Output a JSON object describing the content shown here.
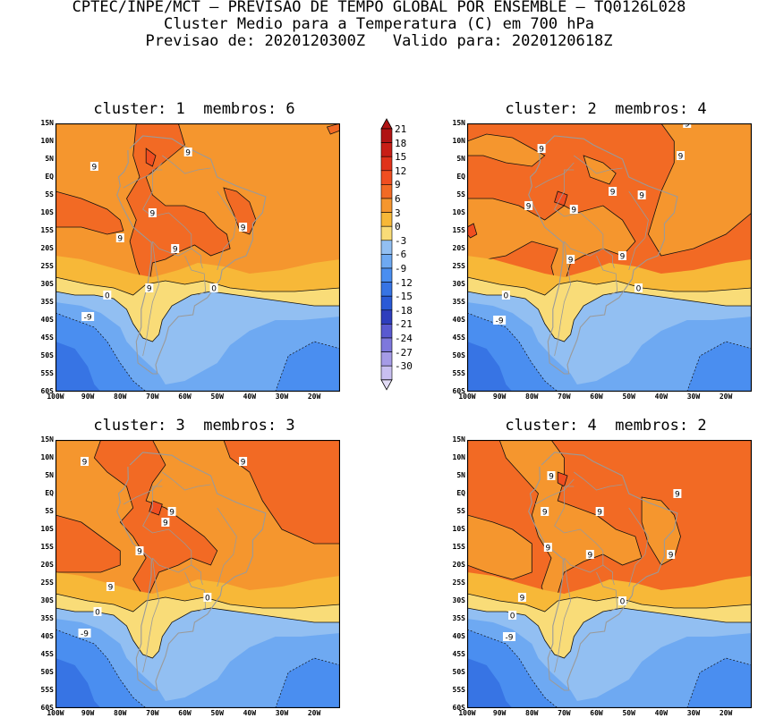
{
  "header": {
    "line1": "CPTEC/INPE/MCT — PREVISAO DE TEMPO GLOBAL POR ENSEMBLE — TQ0126L028",
    "line2": "Cluster Medio para a Temperatura (C) em 700 hPa",
    "line3": "Previsao de: 2020120300Z   Valido para: 2020120618Z"
  },
  "map": {
    "lat_labels": [
      "15N",
      "10N",
      "5N",
      "EQ",
      "5S",
      "10S",
      "15S",
      "20S",
      "25S",
      "30S",
      "35S",
      "40S",
      "45S",
      "50S",
      "55S",
      "60S"
    ],
    "lon_labels": [
      "100W",
      "90W",
      "80W",
      "70W",
      "60W",
      "50W",
      "40W",
      "30W",
      "20W"
    ],
    "lat_range": [
      -60,
      15
    ],
    "lon_range": [
      -100,
      -12
    ]
  },
  "panels": [
    {
      "title": "cluster: 1  membros: 6",
      "contour_labels": [
        {
          "text": "9",
          "lon": -88,
          "lat": 3
        },
        {
          "text": "9",
          "lon": -59,
          "lat": 7
        },
        {
          "text": "9",
          "lon": -70,
          "lat": -10
        },
        {
          "text": "9",
          "lon": -80,
          "lat": -17
        },
        {
          "text": "9",
          "lon": -63,
          "lat": -20
        },
        {
          "text": "9",
          "lon": -42,
          "lat": -14
        },
        {
          "text": "9",
          "lon": -71,
          "lat": -31
        },
        {
          "text": "0",
          "lon": -51,
          "lat": -31
        },
        {
          "text": "0",
          "lon": -84,
          "lat": -33
        },
        {
          "text": "-9",
          "lon": -90,
          "lat": -39
        }
      ]
    },
    {
      "title": "cluster: 2  membros: 4",
      "contour_labels": [
        {
          "text": "9",
          "lon": -32,
          "lat": 15
        },
        {
          "text": "9",
          "lon": -77,
          "lat": 8
        },
        {
          "text": "9",
          "lon": -34,
          "lat": 6
        },
        {
          "text": "9",
          "lon": -81,
          "lat": -8
        },
        {
          "text": "9",
          "lon": -67,
          "lat": -9
        },
        {
          "text": "9",
          "lon": -55,
          "lat": -4
        },
        {
          "text": "9",
          "lon": -46,
          "lat": -5
        },
        {
          "text": "9",
          "lon": -68,
          "lat": -23
        },
        {
          "text": "9",
          "lon": -52,
          "lat": -22
        },
        {
          "text": "0",
          "lon": -47,
          "lat": -31
        },
        {
          "text": "0",
          "lon": -88,
          "lat": -33
        },
        {
          "text": "-9",
          "lon": -90,
          "lat": -40
        }
      ]
    },
    {
      "title": "cluster: 3  membros: 3",
      "contour_labels": [
        {
          "text": "9",
          "lon": -91,
          "lat": 9
        },
        {
          "text": "9",
          "lon": -42,
          "lat": 9
        },
        {
          "text": "9",
          "lon": -64,
          "lat": -5
        },
        {
          "text": "9",
          "lon": -66,
          "lat": -8
        },
        {
          "text": "9",
          "lon": -74,
          "lat": -16
        },
        {
          "text": "9",
          "lon": -83,
          "lat": -26
        },
        {
          "text": "0",
          "lon": -53,
          "lat": -29
        },
        {
          "text": "0",
          "lon": -87,
          "lat": -33
        },
        {
          "text": "-9",
          "lon": -91,
          "lat": -39
        }
      ]
    },
    {
      "title": "cluster: 4  membros: 2",
      "contour_labels": [
        {
          "text": "9",
          "lon": -74,
          "lat": 5
        },
        {
          "text": "9",
          "lon": -35,
          "lat": 0
        },
        {
          "text": "9",
          "lon": -76,
          "lat": -5
        },
        {
          "text": "9",
          "lon": -59,
          "lat": -5
        },
        {
          "text": "9",
          "lon": -75,
          "lat": -15
        },
        {
          "text": "9",
          "lon": -62,
          "lat": -17
        },
        {
          "text": "9",
          "lon": -37,
          "lat": -17
        },
        {
          "text": "9",
          "lon": -83,
          "lat": -29
        },
        {
          "text": "0",
          "lon": -52,
          "lat": -30
        },
        {
          "text": "0",
          "lon": -86,
          "lat": -34
        },
        {
          "text": "-9",
          "lon": -87,
          "lat": -40
        }
      ]
    }
  ],
  "colorbar": {
    "labels": [
      "21",
      "18",
      "15",
      "12",
      "9",
      "6",
      "3",
      "0",
      "-3",
      "-6",
      "-9",
      "-12",
      "-15",
      "-18",
      "-21",
      "-24",
      "-27",
      "-30"
    ],
    "colors": [
      "#b01414",
      "#c81e16",
      "#e0321a",
      "#f04e20",
      "#f26a24",
      "#f5962e",
      "#f7b838",
      "#f9dc78",
      "#92bff2",
      "#6ea9f2",
      "#4a8ef0",
      "#3774e4",
      "#2a5ad6",
      "#2e3ebd",
      "#5a5ad0",
      "#7e78dc",
      "#a59be6",
      "#c8bff0"
    ],
    "arrow_top": "#b01414",
    "arrow_bottom": "#e2dcf6"
  },
  "legend_colors": {
    "border": "#000000",
    "coast": "#9a9a9a",
    "contour": "#000000"
  }
}
